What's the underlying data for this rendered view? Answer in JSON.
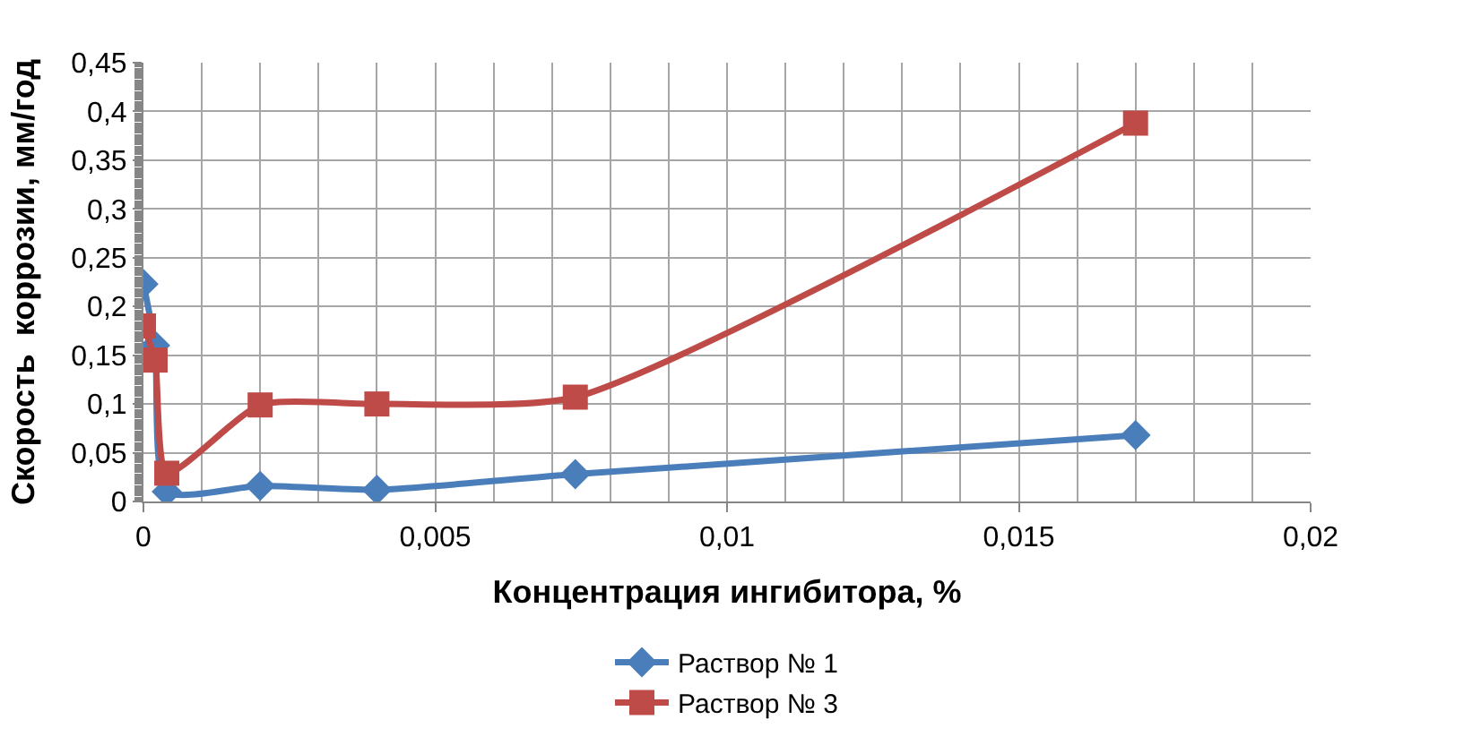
{
  "chart_data": {
    "type": "line",
    "xlabel": "Концентрация ингибитора, %",
    "ylabel": "Скорость  коррозии, мм/год",
    "xlim": [
      0,
      0.02
    ],
    "xticks": [
      {
        "value": 0,
        "label": "0"
      },
      {
        "value": 0.005,
        "label": "0,005"
      },
      {
        "value": 0.01,
        "label": "0,01"
      },
      {
        "value": 0.015,
        "label": "0,015"
      },
      {
        "value": 0.02,
        "label": "0,02"
      }
    ],
    "ylim": [
      0,
      0.45
    ],
    "yticks": [
      {
        "value": 0,
        "label": "0"
      },
      {
        "value": 0.05,
        "label": "0,05"
      },
      {
        "value": 0.1,
        "label": "0,1"
      },
      {
        "value": 0.15,
        "label": "0,15"
      },
      {
        "value": 0.2,
        "label": "0,2"
      },
      {
        "value": 0.25,
        "label": "0,25"
      },
      {
        "value": 0.3,
        "label": "0,3"
      },
      {
        "value": 0.35,
        "label": "0,35"
      },
      {
        "value": 0.4,
        "label": "0,4"
      },
      {
        "value": 0.45,
        "label": "0,45"
      }
    ],
    "grid": true,
    "legend": "bottom",
    "line_style": "solid",
    "series": [
      {
        "name": "Раствор № 1",
        "color": "#4a7ebb",
        "marker": "diamond",
        "x": [
          0,
          0.0002,
          0.0004,
          0.002,
          0.004,
          0.0074,
          0.017
        ],
        "values": [
          0.223,
          0.16,
          0.01,
          0.016,
          0.012,
          0.028,
          0.068
        ]
      },
      {
        "name": "Раствор № 3",
        "color": "#be4b48",
        "marker": "square",
        "x": [
          0,
          0.0002,
          0.0004,
          0.002,
          0.004,
          0.0074,
          0.017
        ],
        "values": [
          0.18,
          0.145,
          0.029,
          0.099,
          0.1,
          0.107,
          0.388
        ]
      }
    ]
  }
}
